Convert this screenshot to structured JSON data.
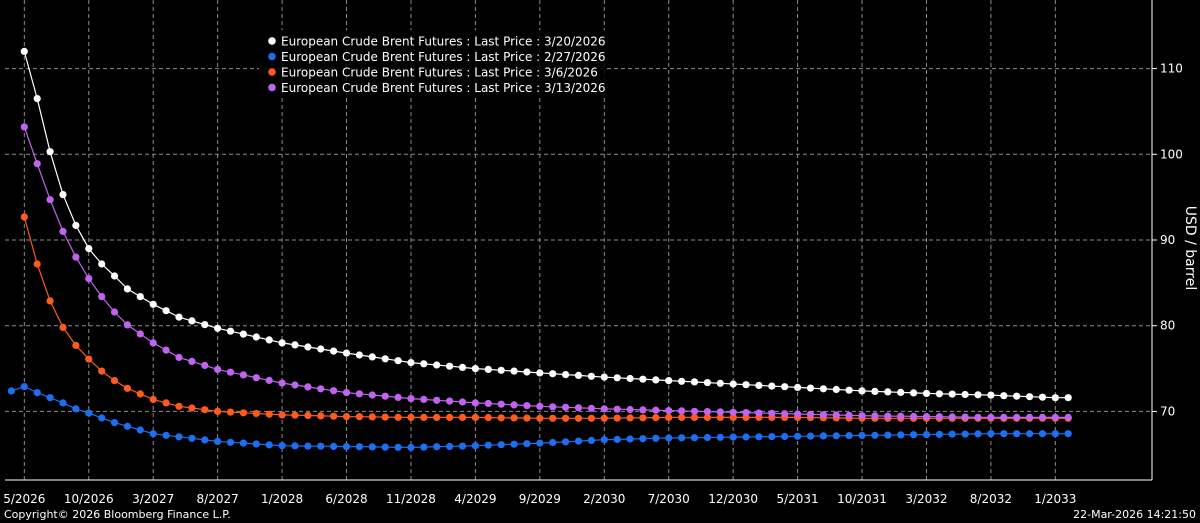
{
  "chart_data": {
    "type": "line",
    "ylabel": "USD / barrel",
    "ylim": [
      62,
      118
    ],
    "yticks": [
      70,
      80,
      90,
      100,
      110
    ],
    "xlim": [
      -1.5,
      87.5
    ],
    "x_tick_labels": [
      "5/2026",
      "10/2026",
      "3/2027",
      "8/2027",
      "1/2028",
      "6/2028",
      "11/2028",
      "4/2029",
      "9/2029",
      "2/2030",
      "7/2030",
      "12/2030",
      "5/2031",
      "10/2031",
      "3/2032",
      "8/2032",
      "1/2033"
    ],
    "x_tick_positions": [
      0,
      5,
      10,
      15,
      20,
      25,
      30,
      35,
      40,
      45,
      50,
      55,
      60,
      65,
      70,
      75,
      80
    ],
    "series": [
      {
        "name": "European Crude Brent Futures : Last Price : 3/20/2026",
        "color": "#ffffff",
        "start_index": 0,
        "anchors": [
          [
            0,
            112
          ],
          [
            1,
            106.5
          ],
          [
            2,
            100.3
          ],
          [
            3,
            95.3
          ],
          [
            4,
            91.7
          ],
          [
            5,
            89.0
          ],
          [
            6,
            87.2
          ],
          [
            7,
            85.8
          ],
          [
            8,
            84.3
          ],
          [
            10,
            82.5
          ],
          [
            12,
            81.0
          ],
          [
            15,
            79.7
          ],
          [
            20,
            78.0
          ],
          [
            25,
            76.8
          ],
          [
            30,
            75.7
          ],
          [
            35,
            75.0
          ],
          [
            40,
            74.5
          ],
          [
            45,
            74.0
          ],
          [
            50,
            73.6
          ],
          [
            55,
            73.2
          ],
          [
            60,
            72.8
          ],
          [
            65,
            72.4
          ],
          [
            70,
            72.1
          ],
          [
            75,
            71.9
          ],
          [
            80,
            71.6
          ],
          [
            81,
            71.6
          ]
        ]
      },
      {
        "name": "European Crude Brent Futures : Last Price : 2/27/2026",
        "color": "#1e6ef2",
        "start_index": -1,
        "anchors": [
          [
            -1,
            72.4
          ],
          [
            0,
            72.9
          ],
          [
            1,
            72.2
          ],
          [
            2,
            71.6
          ],
          [
            3,
            71.0
          ],
          [
            4,
            70.3
          ],
          [
            5,
            69.8
          ],
          [
            7,
            68.7
          ],
          [
            10,
            67.4
          ],
          [
            15,
            66.5
          ],
          [
            20,
            66.0
          ],
          [
            25,
            65.9
          ],
          [
            30,
            65.8
          ],
          [
            35,
            66.0
          ],
          [
            40,
            66.3
          ],
          [
            45,
            66.7
          ],
          [
            50,
            66.9
          ],
          [
            55,
            67.0
          ],
          [
            60,
            67.1
          ],
          [
            65,
            67.2
          ],
          [
            70,
            67.3
          ],
          [
            75,
            67.4
          ],
          [
            81,
            67.4
          ]
        ]
      },
      {
        "name": "European Crude Brent Futures : Last Price : 3/6/2026",
        "color": "#ff5a1e",
        "start_index": 0,
        "anchors": [
          [
            0,
            92.7
          ],
          [
            1,
            87.2
          ],
          [
            2,
            82.9
          ],
          [
            3,
            79.8
          ],
          [
            4,
            77.7
          ],
          [
            5,
            76.1
          ],
          [
            6,
            74.7
          ],
          [
            7,
            73.6
          ],
          [
            8,
            72.7
          ],
          [
            10,
            71.4
          ],
          [
            12,
            70.6
          ],
          [
            15,
            70.0
          ],
          [
            20,
            69.6
          ],
          [
            25,
            69.4
          ],
          [
            30,
            69.3
          ],
          [
            35,
            69.3
          ],
          [
            40,
            69.2
          ],
          [
            45,
            69.2
          ],
          [
            50,
            69.3
          ],
          [
            55,
            69.3
          ],
          [
            60,
            69.3
          ],
          [
            65,
            69.2
          ],
          [
            70,
            69.2
          ],
          [
            75,
            69.2
          ],
          [
            81,
            69.2
          ]
        ]
      },
      {
        "name": "European Crude Brent Futures : Last Price : 3/13/2026",
        "color": "#c064f0",
        "start_index": 0,
        "anchors": [
          [
            0,
            103.2
          ],
          [
            1,
            98.9
          ],
          [
            2,
            94.7
          ],
          [
            3,
            91.0
          ],
          [
            4,
            88.0
          ],
          [
            5,
            85.5
          ],
          [
            6,
            83.4
          ],
          [
            7,
            81.6
          ],
          [
            8,
            80.1
          ],
          [
            10,
            78.0
          ],
          [
            12,
            76.3
          ],
          [
            15,
            74.9
          ],
          [
            20,
            73.3
          ],
          [
            25,
            72.2
          ],
          [
            30,
            71.5
          ],
          [
            35,
            71.0
          ],
          [
            40,
            70.6
          ],
          [
            45,
            70.3
          ],
          [
            50,
            70.1
          ],
          [
            55,
            69.9
          ],
          [
            60,
            69.7
          ],
          [
            65,
            69.5
          ],
          [
            70,
            69.4
          ],
          [
            75,
            69.3
          ],
          [
            81,
            69.3
          ]
        ]
      }
    ]
  },
  "footer": {
    "copyright": "Copyright© 2026 Bloomberg Finance L.P.",
    "timestamp": "22-Mar-2026 14:21:50"
  }
}
